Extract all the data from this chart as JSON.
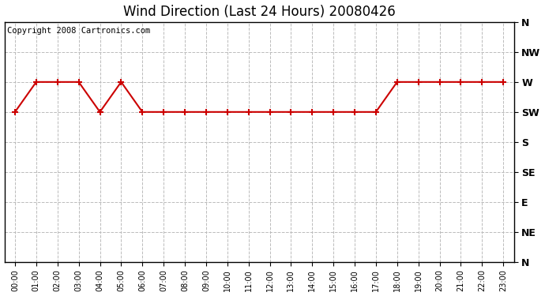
{
  "title": "Wind Direction (Last 24 Hours) 20080426",
  "copyright": "Copyright 2008 Cartronics.com",
  "hours": [
    0,
    1,
    2,
    3,
    4,
    5,
    6,
    7,
    8,
    9,
    10,
    11,
    12,
    13,
    14,
    15,
    16,
    17,
    18,
    19,
    20,
    21,
    22,
    23
  ],
  "wind_values": [
    5,
    6,
    6,
    6,
    5,
    6,
    5,
    5,
    5,
    5,
    5,
    5,
    5,
    5,
    5,
    5,
    5,
    5,
    6,
    6,
    6,
    6,
    6,
    6
  ],
  "ytick_labels": [
    "N",
    "NW",
    "W",
    "SW",
    "S",
    "SE",
    "E",
    "NE",
    "N"
  ],
  "ytick_values": [
    8,
    7,
    6,
    5,
    4,
    3,
    2,
    1,
    0
  ],
  "ylim": [
    0,
    8
  ],
  "xlim": [
    -0.5,
    23.5
  ],
  "line_color": "#cc0000",
  "marker_color": "#cc0000",
  "bg_color": "#ffffff",
  "grid_color": "#bbbbbb",
  "title_fontsize": 12,
  "copyright_fontsize": 7.5
}
